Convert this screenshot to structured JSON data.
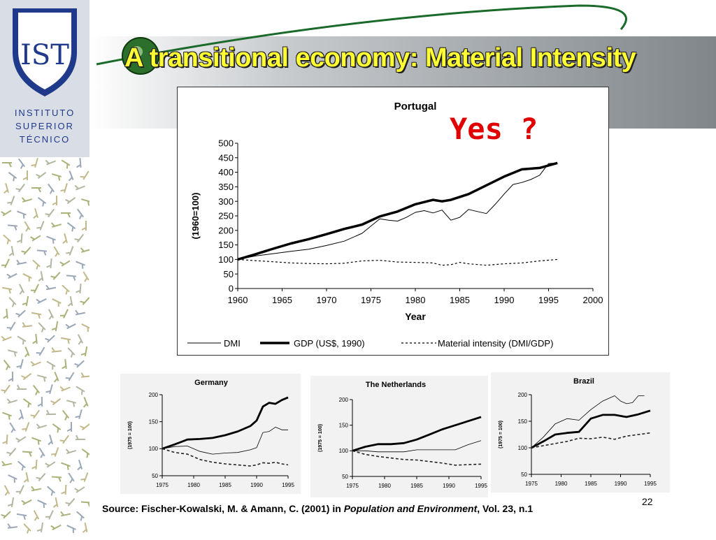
{
  "slide": {
    "title": "A transitional economy: Material Intensity",
    "annotation": "Yes ?",
    "page_number": "22",
    "logo": {
      "text": [
        "INSTITUTO",
        "SUPERIOR",
        "TÉCNICO"
      ],
      "letters": "IST"
    },
    "source": {
      "prefix": "Source: Fischer-Kowalski, M. & Amann, C. (2001) in ",
      "journal": "Population and Environment",
      "suffix": ", Vol. 23, n.1"
    }
  },
  "colors": {
    "title_yellow": "#ffff33",
    "annotation_red": "#e00000",
    "logo_blue": "#1f3a8a",
    "logo_panel": "#d8dde6"
  },
  "chart_data": [
    {
      "type": "line",
      "title": "Portugal",
      "xlabel": "Year",
      "ylabel": "(1960=100)",
      "xlim": [
        1960,
        2000
      ],
      "ylim": [
        0,
        500
      ],
      "xticks": [
        1960,
        1965,
        1970,
        1975,
        1980,
        1985,
        1990,
        1995,
        2000
      ],
      "yticks": [
        0,
        50,
        100,
        150,
        200,
        250,
        300,
        350,
        400,
        450,
        500
      ],
      "legend_position": "bottom",
      "series": [
        {
          "name": "DMI",
          "style": "thin",
          "x": [
            1960,
            1962,
            1964,
            1966,
            1968,
            1970,
            1972,
            1974,
            1976,
            1977,
            1978,
            1979,
            1980,
            1981,
            1982,
            1983,
            1984,
            1985,
            1986,
            1987,
            1988,
            1989,
            1990,
            1991,
            1992,
            1993,
            1994,
            1995,
            1996
          ],
          "y": [
            100,
            112,
            120,
            128,
            135,
            148,
            163,
            190,
            240,
            235,
            232,
            245,
            262,
            268,
            260,
            270,
            235,
            245,
            272,
            265,
            258,
            290,
            325,
            358,
            365,
            375,
            390,
            430,
            432
          ]
        },
        {
          "name": "GDP  (US$, 1990)",
          "style": "thick",
          "x": [
            1960,
            1962,
            1964,
            1966,
            1968,
            1970,
            1972,
            1974,
            1976,
            1978,
            1980,
            1982,
            1983,
            1984,
            1986,
            1988,
            1990,
            1992,
            1994,
            1996
          ],
          "y": [
            100,
            118,
            137,
            155,
            170,
            187,
            205,
            220,
            248,
            265,
            290,
            305,
            300,
            305,
            325,
            355,
            385,
            410,
            415,
            432
          ]
        },
        {
          "name": "Material intensity (DMI/GDP)",
          "style": "dotted",
          "x": [
            1960,
            1962,
            1964,
            1966,
            1968,
            1970,
            1972,
            1974,
            1976,
            1978,
            1980,
            1982,
            1983,
            1984,
            1985,
            1986,
            1988,
            1990,
            1992,
            1994,
            1996
          ],
          "y": [
            100,
            96,
            92,
            88,
            86,
            85,
            87,
            95,
            97,
            91,
            90,
            88,
            80,
            82,
            90,
            85,
            80,
            85,
            88,
            95,
            100
          ]
        }
      ]
    },
    {
      "type": "line",
      "title": "Germany",
      "ylabel": "(1975 = 100)",
      "xlim": [
        1975,
        1995
      ],
      "ylim": [
        50,
        200
      ],
      "xticks": [
        1975,
        1980,
        1985,
        1990,
        1995
      ],
      "yticks": [
        50,
        100,
        150,
        200
      ],
      "series": [
        {
          "style": "thick",
          "x": [
            1975,
            1977,
            1979,
            1981,
            1983,
            1985,
            1987,
            1989,
            1990,
            1991,
            1992,
            1993,
            1994,
            1995
          ],
          "y": [
            100,
            108,
            117,
            118,
            120,
            125,
            132,
            142,
            152,
            178,
            185,
            183,
            190,
            195
          ]
        },
        {
          "style": "thin",
          "x": [
            1975,
            1977,
            1979,
            1981,
            1983,
            1985,
            1987,
            1989,
            1990,
            1991,
            1992,
            1993,
            1994,
            1995
          ],
          "y": [
            100,
            104,
            105,
            95,
            90,
            92,
            93,
            98,
            102,
            130,
            132,
            140,
            135,
            135
          ]
        },
        {
          "style": "dashed",
          "x": [
            1975,
            1977,
            1979,
            1981,
            1983,
            1985,
            1987,
            1989,
            1990,
            1991,
            1992,
            1993,
            1994,
            1995
          ],
          "y": [
            100,
            93,
            90,
            80,
            75,
            72,
            70,
            68,
            70,
            74,
            73,
            75,
            72,
            70
          ]
        }
      ]
    },
    {
      "type": "line",
      "title": "The Netherlands",
      "ylabel": "(1975 = 100)",
      "xlim": [
        1975,
        1995
      ],
      "ylim": [
        50,
        200
      ],
      "xticks": [
        1975,
        1980,
        1985,
        1990,
        1995
      ],
      "yticks": [
        50,
        100,
        150,
        200
      ],
      "series": [
        {
          "style": "thick",
          "x": [
            1975,
            1977,
            1979,
            1981,
            1983,
            1985,
            1987,
            1989,
            1991,
            1993,
            1995
          ],
          "y": [
            100,
            108,
            113,
            113,
            115,
            122,
            132,
            142,
            150,
            158,
            166
          ]
        },
        {
          "style": "thin",
          "x": [
            1975,
            1977,
            1979,
            1981,
            1983,
            1985,
            1987,
            1989,
            1991,
            1993,
            1995
          ],
          "y": [
            100,
            100,
            98,
            98,
            98,
            102,
            102,
            102,
            102,
            112,
            120
          ]
        },
        {
          "style": "dashed",
          "x": [
            1975,
            1977,
            1979,
            1981,
            1983,
            1985,
            1987,
            1989,
            1991,
            1993,
            1995
          ],
          "y": [
            100,
            93,
            89,
            86,
            83,
            82,
            79,
            76,
            72,
            73,
            74
          ]
        }
      ]
    },
    {
      "type": "line",
      "title": "Brazil",
      "ylabel": "(1975 = 100)",
      "xlim": [
        1975,
        1995
      ],
      "ylim": [
        50,
        200
      ],
      "xticks": [
        1975,
        1980,
        1985,
        1990,
        1995
      ],
      "yticks": [
        50,
        100,
        150,
        200
      ],
      "series": [
        {
          "style": "thin",
          "x": [
            1975,
            1977,
            1979,
            1981,
            1983,
            1985,
            1987,
            1989,
            1990,
            1991,
            1992,
            1993,
            1994
          ],
          "y": [
            100,
            120,
            145,
            155,
            152,
            172,
            188,
            198,
            188,
            183,
            185,
            198,
            198
          ]
        },
        {
          "style": "thick",
          "x": [
            1975,
            1977,
            1979,
            1981,
            1983,
            1985,
            1987,
            1989,
            1991,
            1993,
            1995
          ],
          "y": [
            100,
            112,
            125,
            128,
            130,
            155,
            162,
            162,
            158,
            163,
            170
          ]
        },
        {
          "style": "dashed",
          "x": [
            1975,
            1977,
            1979,
            1981,
            1983,
            1985,
            1987,
            1989,
            1991,
            1993,
            1995
          ],
          "y": [
            100,
            104,
            108,
            112,
            118,
            117,
            120,
            116,
            122,
            125,
            128
          ]
        }
      ]
    }
  ]
}
